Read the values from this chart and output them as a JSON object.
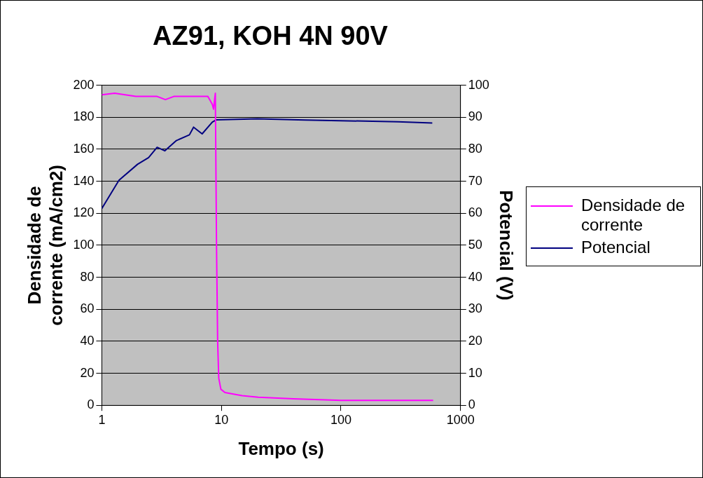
{
  "chart_data": {
    "type": "line",
    "title": "AZ91, KOH 4N 90V",
    "xlabel": "Tempo (s)",
    "ylabel": "Densidade de corrente (mA/cm2)",
    "y2label": "Potencial (V)",
    "log": "x",
    "xlim": [
      1,
      1000
    ],
    "xticks": [
      1,
      10,
      100,
      1000
    ],
    "ylim": [
      0,
      200
    ],
    "yticks": [
      0,
      20,
      40,
      60,
      80,
      100,
      120,
      140,
      160,
      180,
      200
    ],
    "y2lim": [
      0,
      100
    ],
    "y2ticks": [
      0,
      10,
      20,
      30,
      40,
      50,
      60,
      70,
      80,
      90,
      100
    ],
    "grid": "y",
    "legend": "right",
    "marker": "none",
    "series": [
      {
        "name": "Densidade de corrente",
        "color": "#ff00ff",
        "x": [
          1,
          1.28,
          1.92,
          2.9,
          3.4,
          4.0,
          7.7,
          8.4,
          8.6,
          8.8,
          8.9,
          9.1,
          9.3,
          9.5,
          9.9,
          10.7,
          12.6,
          14.9,
          20.3,
          40,
          100,
          425,
          590
        ],
        "values": [
          194,
          195,
          193,
          193,
          191,
          193,
          193,
          188,
          185,
          192,
          195,
          100,
          40,
          17,
          10,
          8,
          7,
          6,
          5,
          4,
          3,
          3,
          3
        ]
      },
      {
        "name": "Potencial",
        "axis": "y2",
        "color": "#000080",
        "x": [
          1,
          1.39,
          1.99,
          2.46,
          2.9,
          3.36,
          4.2,
          5.4,
          5.85,
          6.9,
          8.4,
          9.1,
          20,
          50,
          300,
          580
        ],
        "values": [
          61.5,
          70.3,
          75.3,
          77.4,
          80.6,
          79.5,
          82.7,
          84.5,
          86.9,
          84.8,
          88.5,
          89.2,
          89.5,
          89.1,
          88.6,
          88.2
        ]
      }
    ]
  }
}
